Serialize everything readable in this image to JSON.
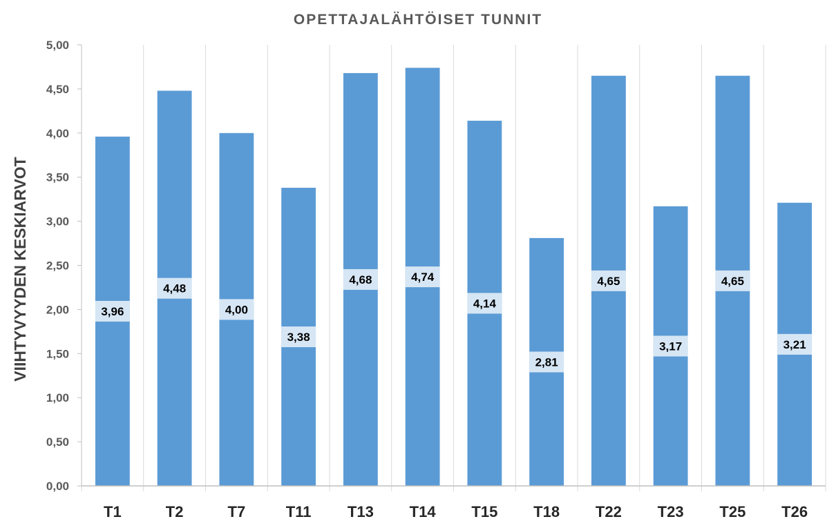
{
  "chart_data": {
    "type": "bar",
    "title": "OPETTAJALÄHTÖISET TUNNIT",
    "xlabel": "",
    "ylabel": "VIIHTYVYYDEN KESKIARVOT",
    "categories": [
      "T1",
      "T2",
      "T7",
      "T11",
      "T13",
      "T14",
      "T15",
      "T18",
      "T22",
      "T23",
      "T25",
      "T26"
    ],
    "values": [
      3.96,
      4.48,
      4.0,
      3.38,
      4.68,
      4.74,
      4.14,
      2.81,
      4.65,
      3.17,
      4.65,
      3.21
    ],
    "data_labels": [
      "3,96",
      "4,48",
      "4,00",
      "3,38",
      "4,68",
      "4,74",
      "4,14",
      "2,81",
      "4,65",
      "3,17",
      "4,65",
      "3,21"
    ],
    "ylim": [
      0,
      5
    ],
    "yticks": [
      0,
      0.5,
      1,
      1.5,
      2,
      2.5,
      3,
      3.5,
      4,
      4.5,
      5
    ],
    "ytick_labels": [
      "0,00",
      "0,50",
      "1,00",
      "1,50",
      "2,00",
      "2,50",
      "3,00",
      "3,50",
      "4,00",
      "4,50",
      "5,00"
    ],
    "grid": "vertical",
    "legend": "none",
    "colors": {
      "bar": "#5B9BD5",
      "label_background": "#D6E6F4",
      "grid": "#D9D9D9",
      "axis": "#BFBFBF"
    }
  }
}
